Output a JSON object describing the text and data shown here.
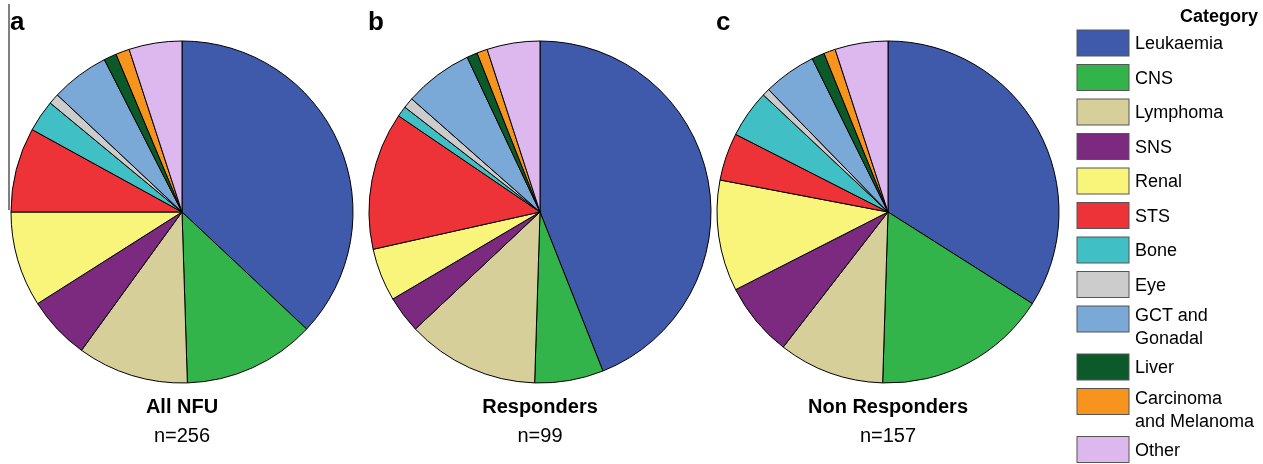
{
  "chart_data": [
    {
      "type": "pie",
      "title": "All NFU",
      "subtitle": "n=256",
      "annotations": [
        "a"
      ],
      "legend": "right",
      "legend_title": "Category",
      "categories": [
        "Leukaemia",
        "CNS",
        "Lymphoma",
        "SNS",
        "Renal",
        "STS",
        "Bone",
        "Eye",
        "GCT and Gonadal",
        "Liver",
        "Carcinoma and Melanoma",
        "Other"
      ],
      "values": [
        37,
        12.5,
        10.5,
        6,
        9,
        8,
        3,
        1,
        5.5,
        1.2,
        1.3,
        5
      ],
      "colors": [
        "#3f59ab",
        "#33b44a",
        "#d6cf9a",
        "#7b2a7f",
        "#f8f57a",
        "#ee3338",
        "#40c0c4",
        "#cccccc",
        "#7aa9d8",
        "#0c5a2a",
        "#f7941d",
        "#dcb8ef"
      ]
    },
    {
      "type": "pie",
      "title": "Responders",
      "subtitle": "n=99",
      "annotations": [
        "b"
      ],
      "categories": [
        null,
        null,
        null,
        null,
        null,
        null,
        null,
        null,
        null,
        null,
        null,
        null
      ],
      "values": [
        44,
        6.5,
        12.5,
        3.5,
        5,
        13,
        1,
        1,
        6.5,
        1,
        1,
        5
      ],
      "colors": [
        "#3f59ab",
        "#33b44a",
        "#d6cf9a",
        "#7b2a7f",
        "#f8f57a",
        "#ee3338",
        "#40c0c4",
        "#cccccc",
        "#7aa9d8",
        "#0c5a2a",
        "#f7941d",
        "#dcb8ef"
      ]
    },
    {
      "type": "pie",
      "title": "Non Responders",
      "subtitle": "n=157",
      "annotations": [
        "c"
      ],
      "categories": [
        null,
        null,
        null,
        null,
        null,
        null,
        null,
        null,
        null,
        null,
        null,
        null
      ],
      "values": [
        34,
        16.5,
        10,
        7,
        10.5,
        4.5,
        4.5,
        0.7,
        5,
        1.2,
        1.1,
        5
      ],
      "colors": [
        "#3f59ab",
        "#33b44a",
        "#d6cf9a",
        "#7b2a7f",
        "#f8f57a",
        "#ee3338",
        "#40c0c4",
        "#cccccc",
        "#7aa9d8",
        "#0c5a2a",
        "#f7941d",
        "#dcb8ef"
      ]
    }
  ]
}
